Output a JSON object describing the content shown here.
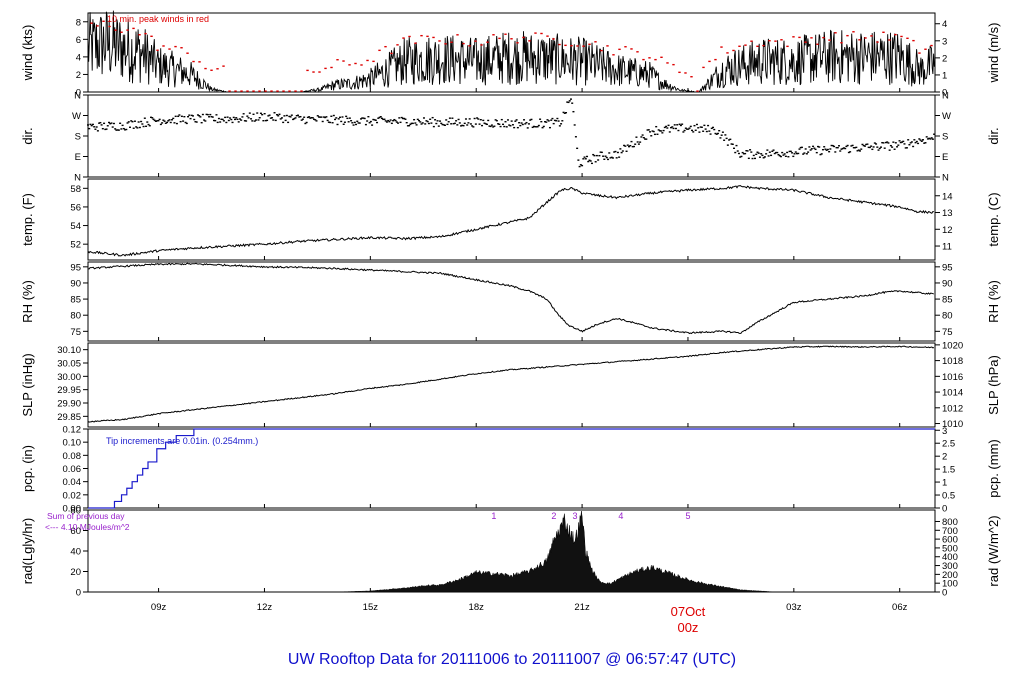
{
  "title": "UW Rooftop Data for 20111006  to  20111007 @ 06:57:47  (UTC)",
  "colors": {
    "title": "#1010cc",
    "gust": "#dd0000",
    "precip": "#1a1acc",
    "rad_note": "#9922cc",
    "date_marker": "#dd0000",
    "series": "#000000"
  },
  "x_axis": {
    "start_hour": 7.0,
    "end_hour": 31.0,
    "ticks": [
      {
        "hour": 9,
        "label": "09z"
      },
      {
        "hour": 12,
        "label": "12z"
      },
      {
        "hour": 15,
        "label": "15z"
      },
      {
        "hour": 18,
        "label": "18z"
      },
      {
        "hour": 21,
        "label": "21z"
      },
      {
        "hour": 27,
        "label": "03z"
      },
      {
        "hour": 30,
        "label": "06z"
      }
    ],
    "date_marker": {
      "hour": 24,
      "date": "07Oct",
      "label": "00z"
    }
  },
  "panels": [
    {
      "id": "wind",
      "ylabel": "wind (kts)",
      "ylabel_right": "wind (m/s)",
      "annotation": "10 min. peak winds in red",
      "ylim": [
        0,
        9
      ],
      "ticks_left": [
        {
          "v": 0,
          "t": "0"
        },
        {
          "v": 2,
          "t": "2"
        },
        {
          "v": 4,
          "t": "4"
        },
        {
          "v": 6,
          "t": "6"
        },
        {
          "v": 8,
          "t": "8"
        }
      ],
      "ticks_right": [
        {
          "v": 0,
          "t": "0"
        },
        {
          "v": 1.944,
          "t": "1"
        },
        {
          "v": 3.888,
          "t": "2"
        },
        {
          "v": 5.832,
          "t": "3"
        },
        {
          "v": 7.776,
          "t": "4"
        }
      ]
    },
    {
      "id": "dir",
      "ylabel": "dir.",
      "ylabel_right": "dir.",
      "ylim": [
        0,
        360
      ],
      "ticks_left": [
        {
          "v": 0,
          "t": "N"
        },
        {
          "v": 90,
          "t": "E"
        },
        {
          "v": 180,
          "t": "S"
        },
        {
          "v": 270,
          "t": "W"
        },
        {
          "v": 360,
          "t": "N"
        }
      ],
      "ticks_right": [
        {
          "v": 0,
          "t": "N"
        },
        {
          "v": 90,
          "t": "E"
        },
        {
          "v": 180,
          "t": "S"
        },
        {
          "v": 270,
          "t": "W"
        },
        {
          "v": 360,
          "t": "N"
        }
      ]
    },
    {
      "id": "temp",
      "ylabel": "temp. (F)",
      "ylabel_right": "temp. (C)",
      "ylim": [
        50.3,
        59.0
      ],
      "ticks_left": [
        {
          "v": 52,
          "t": "52"
        },
        {
          "v": 54,
          "t": "54"
        },
        {
          "v": 56,
          "t": "56"
        },
        {
          "v": 58,
          "t": "58"
        }
      ],
      "ticks_right": [
        {
          "v": 51.8,
          "t": "11"
        },
        {
          "v": 53.6,
          "t": "12"
        },
        {
          "v": 55.4,
          "t": "13"
        },
        {
          "v": 57.2,
          "t": "14"
        }
      ]
    },
    {
      "id": "rh",
      "ylabel": "RH (%)",
      "ylabel_right": "RH (%)",
      "ylim": [
        72,
        96.5
      ],
      "ticks_left": [
        {
          "v": 75,
          "t": "75"
        },
        {
          "v": 80,
          "t": "80"
        },
        {
          "v": 85,
          "t": "85"
        },
        {
          "v": 90,
          "t": "90"
        },
        {
          "v": 95,
          "t": "95"
        }
      ],
      "ticks_right": [
        {
          "v": 75,
          "t": "75"
        },
        {
          "v": 80,
          "t": "80"
        },
        {
          "v": 85,
          "t": "85"
        },
        {
          "v": 90,
          "t": "90"
        },
        {
          "v": 95,
          "t": "95"
        }
      ]
    },
    {
      "id": "slp",
      "ylabel": "SLP (inHg)",
      "ylabel_right": "SLP (hPa)",
      "ylim": [
        29.81,
        30.125
      ],
      "ticks_left": [
        {
          "v": 29.85,
          "t": "29.85"
        },
        {
          "v": 29.9,
          "t": "29.90"
        },
        {
          "v": 29.95,
          "t": "29.95"
        },
        {
          "v": 30.0,
          "t": "30.00"
        },
        {
          "v": 30.05,
          "t": "30.05"
        },
        {
          "v": 30.1,
          "t": "30.10"
        }
      ],
      "ticks_right": [
        {
          "v": 29.823,
          "t": "1010"
        },
        {
          "v": 29.882,
          "t": "1012"
        },
        {
          "v": 29.941,
          "t": "1014"
        },
        {
          "v": 30.0,
          "t": "1016"
        },
        {
          "v": 30.059,
          "t": "1018"
        },
        {
          "v": 30.118,
          "t": "1020"
        }
      ]
    },
    {
      "id": "pcp",
      "ylabel": "pcp. (in)",
      "ylabel_right": "pcp. (mm)",
      "annotation": "Tip increments are 0.01in. (0.254mm.)",
      "ylim": [
        0,
        0.12
      ],
      "ticks_left": [
        {
          "v": 0,
          "t": "0.00"
        },
        {
          "v": 0.02,
          "t": "0.02"
        },
        {
          "v": 0.04,
          "t": "0.04"
        },
        {
          "v": 0.06,
          "t": "0.06"
        },
        {
          "v": 0.08,
          "t": "0.08"
        },
        {
          "v": 0.1,
          "t": "0.10"
        },
        {
          "v": 0.12,
          "t": "0.12"
        }
      ],
      "ticks_right": [
        {
          "v": 0,
          "t": "0"
        },
        {
          "v": 0.0197,
          "t": "0.5"
        },
        {
          "v": 0.0394,
          "t": "1"
        },
        {
          "v": 0.0591,
          "t": "1.5"
        },
        {
          "v": 0.0787,
          "t": "2"
        },
        {
          "v": 0.0984,
          "t": "2.5"
        },
        {
          "v": 0.1181,
          "t": "3"
        }
      ]
    },
    {
      "id": "rad",
      "ylabel": "rad(Lgly/hr)",
      "ylabel_right": "rad (W/m^2)",
      "annotation": "Sum of previous day",
      "annotation2": "<--- 4.10 MJoules/m^2",
      "markers": [
        "1",
        "2",
        "3",
        "4",
        "5"
      ],
      "ylim": [
        0,
        80
      ],
      "ticks_left": [
        {
          "v": 0,
          "t": "0"
        },
        {
          "v": 20,
          "t": "20"
        },
        {
          "v": 40,
          "t": "40"
        },
        {
          "v": 60,
          "t": "60"
        },
        {
          "v": 80,
          "t": "80"
        }
      ],
      "ticks_right": [
        {
          "v": 0,
          "t": "0"
        },
        {
          "v": 8.6,
          "t": "100"
        },
        {
          "v": 17.2,
          "t": "200"
        },
        {
          "v": 25.8,
          "t": "300"
        },
        {
          "v": 34.4,
          "t": "400"
        },
        {
          "v": 43.0,
          "t": "500"
        },
        {
          "v": 51.6,
          "t": "600"
        },
        {
          "v": 60.2,
          "t": "700"
        },
        {
          "v": 68.8,
          "t": "800"
        }
      ]
    }
  ],
  "chart_data": [
    {
      "type": "line",
      "title": "wind (kts)",
      "ylabel": "wind (kts)",
      "ylim": [
        0,
        9
      ],
      "series": [
        {
          "name": "10 min. peak winds in red",
          "style": "points"
        }
      ],
      "x": [
        7.0,
        7.5,
        8.0,
        8.5,
        9.0,
        9.5,
        9.9,
        10.2,
        10.5,
        11.0,
        12.0,
        13.0,
        13.6,
        14.0,
        14.5,
        15.0,
        16.0,
        17.0,
        18.0,
        19.0,
        20.0,
        21.0,
        22.0,
        22.5,
        22.9,
        23.3,
        23.8,
        24.3,
        25.0,
        26.0,
        27.0,
        28.0,
        29.0,
        30.0,
        30.6,
        31.0
      ],
      "values": [
        5.0,
        5.5,
        5.0,
        4.5,
        3.0,
        2.5,
        2.0,
        1.2,
        0.3,
        0.0,
        0.0,
        0.0,
        0.3,
        0.8,
        1.0,
        1.5,
        3.5,
        3.8,
        3.5,
        4.0,
        3.8,
        3.5,
        2.5,
        2.2,
        2.0,
        1.0,
        0.2,
        0.0,
        2.5,
        3.5,
        3.5,
        4.0,
        4.0,
        4.0,
        2.5,
        3.2
      ]
    },
    {
      "type": "scatter",
      "title": "dir.",
      "ylabel": "dir.",
      "ylim": [
        0,
        360
      ],
      "x": [
        7.0,
        8.0,
        9.0,
        10.0,
        11.0,
        12.0,
        13.0,
        14.0,
        15.0,
        16.0,
        17.0,
        18.0,
        19.0,
        20.0,
        20.4,
        20.7,
        20.9,
        21.1,
        21.5,
        22.0,
        23.0,
        24.0,
        24.8,
        25.0,
        25.5,
        26.0,
        27.0,
        28.0,
        29.0,
        30.0,
        31.0
      ],
      "values": [
        220,
        225,
        250,
        255,
        255,
        265,
        255,
        250,
        245,
        245,
        240,
        240,
        235,
        235,
        240,
        355,
        60,
        70,
        90,
        100,
        205,
        215,
        205,
        180,
        100,
        100,
        110,
        120,
        130,
        140,
        175
      ]
    },
    {
      "type": "line",
      "title": "temp. (F)",
      "ylabel": "temp. (F)",
      "ylim": [
        50.3,
        59.0
      ],
      "x": [
        7.0,
        8.0,
        9.0,
        10.0,
        11.0,
        12.0,
        13.0,
        14.0,
        15.0,
        16.0,
        17.0,
        18.0,
        19.0,
        19.5,
        20.0,
        20.4,
        20.7,
        21.0,
        21.5,
        22.0,
        23.0,
        24.0,
        25.0,
        25.5,
        26.0,
        27.0,
        28.0,
        29.0,
        30.0,
        30.5,
        31.0
      ],
      "values": [
        51.2,
        50.8,
        51.3,
        51.6,
        51.8,
        52.0,
        52.3,
        52.5,
        52.7,
        52.6,
        52.8,
        53.6,
        54.4,
        54.8,
        56.5,
        57.8,
        58.0,
        57.5,
        57.2,
        57.0,
        57.5,
        57.8,
        58.0,
        58.2,
        58.0,
        57.8,
        57.0,
        56.5,
        56.0,
        55.5,
        55.4
      ]
    },
    {
      "type": "line",
      "title": "RH (%)",
      "ylabel": "RH (%)",
      "ylim": [
        72,
        96.5
      ],
      "x": [
        7.0,
        8.0,
        9.0,
        10.0,
        11.0,
        12.0,
        13.0,
        14.0,
        15.0,
        16.0,
        17.0,
        18.0,
        19.0,
        19.5,
        20.0,
        20.3,
        20.6,
        21.0,
        21.5,
        22.0,
        23.0,
        24.0,
        25.0,
        25.5,
        26.0,
        27.0,
        28.0,
        29.0,
        29.5,
        30.0,
        31.0
      ],
      "values": [
        94.5,
        95.2,
        95.8,
        95.9,
        95.5,
        95.0,
        94.8,
        94.5,
        94.0,
        93.5,
        93.0,
        91.0,
        89.0,
        87.5,
        85.0,
        80.5,
        77.0,
        75.0,
        77.5,
        79.0,
        76.0,
        74.5,
        75.0,
        74.5,
        78.0,
        84.0,
        85.0,
        86.0,
        87.0,
        87.5,
        86.5
      ]
    },
    {
      "type": "line",
      "title": "SLP (inHg)",
      "ylabel": "SLP (inHg)",
      "ylim": [
        29.81,
        30.125
      ],
      "x": [
        7.0,
        8.0,
        9.0,
        10.0,
        11.0,
        12.0,
        13.0,
        14.0,
        15.0,
        16.0,
        17.0,
        18.0,
        19.0,
        20.0,
        21.0,
        22.0,
        23.0,
        24.0,
        25.0,
        26.0,
        27.0,
        28.0,
        29.0,
        30.0,
        31.0
      ],
      "values": [
        29.83,
        29.838,
        29.86,
        29.875,
        29.89,
        29.905,
        29.92,
        29.935,
        29.955,
        29.97,
        29.99,
        30.01,
        30.025,
        30.035,
        30.045,
        30.055,
        30.065,
        30.075,
        30.09,
        30.1,
        30.11,
        30.112,
        30.11,
        30.112,
        30.108
      ]
    },
    {
      "type": "line",
      "title": "pcp. (in)",
      "ylabel": "pcp. (in)",
      "ylim": [
        0,
        0.12
      ],
      "step": true,
      "x": [
        7.0,
        7.5,
        7.75,
        7.95,
        8.1,
        8.25,
        8.4,
        8.55,
        8.7,
        8.95,
        9.2,
        9.5,
        10.0,
        31.0
      ],
      "values": [
        0.0,
        0.0,
        0.01,
        0.02,
        0.03,
        0.04,
        0.05,
        0.06,
        0.07,
        0.09,
        0.1,
        0.11,
        0.12,
        0.12
      ]
    },
    {
      "type": "area",
      "title": "rad(Lgly/hr)",
      "ylabel": "rad(Lgly/hr)",
      "ylim": [
        0,
        80
      ],
      "x": [
        14.0,
        15.0,
        16.0,
        16.5,
        17.0,
        17.5,
        18.0,
        18.5,
        19.0,
        19.5,
        20.0,
        20.2,
        20.5,
        20.6,
        20.8,
        21.0,
        21.1,
        21.3,
        21.5,
        21.8,
        22.0,
        22.5,
        23.0,
        23.3,
        23.5,
        24.0,
        24.5,
        25.0,
        25.5,
        26.0,
        26.5
      ],
      "values": [
        0,
        1,
        4,
        6,
        7,
        12,
        19,
        18,
        16,
        20,
        30,
        50,
        70,
        62,
        50,
        75,
        40,
        20,
        10,
        8,
        12,
        20,
        24,
        20,
        18,
        12,
        8,
        5,
        2,
        1,
        0
      ]
    }
  ]
}
